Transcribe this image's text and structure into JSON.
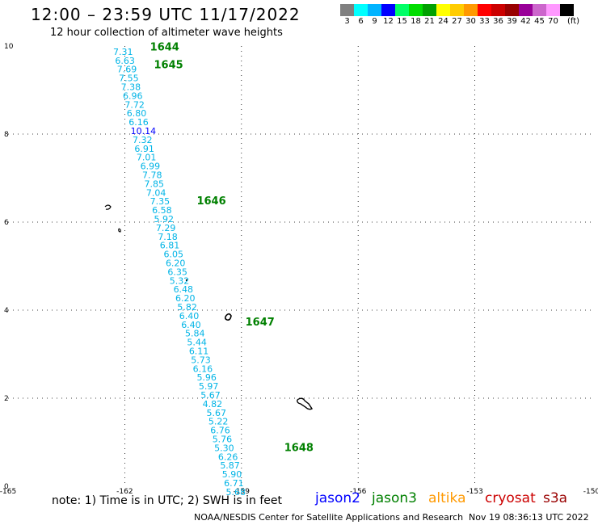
{
  "header": {
    "title": "12:00 – 23:59 UTC 11/17/2022",
    "subtitle": "12 hour collection of altimeter wave heights"
  },
  "legend": {
    "colors": [
      "#808080",
      "#00ffff",
      "#00b4ff",
      "#0000ff",
      "#00ff66",
      "#00dd00",
      "#00a000",
      "#ffff00",
      "#ffcc00",
      "#ff9900",
      "#ff0000",
      "#cc0000",
      "#990000",
      "#990099",
      "#cc66cc",
      "#ff99ff",
      "#000000"
    ],
    "labels": [
      "3",
      "6",
      "9",
      "12",
      "15",
      "18",
      "21",
      "24",
      "27",
      "30",
      "33",
      "36",
      "39",
      "42",
      "45",
      "70",
      "(ft)"
    ]
  },
  "footer": {
    "note": "note:  1) Time is in UTC;  2) SWH is in feet",
    "satellites": [
      {
        "name": "jason2",
        "color": "#0000ff"
      },
      {
        "name": "jason3",
        "color": "#008000"
      },
      {
        "name": "altika",
        "color": "#ff9900"
      },
      {
        "name": "cryosat",
        "color": "#cc0000"
      },
      {
        "name": "s3a",
        "color": "#990000"
      }
    ],
    "credit": "NOAA/NESDIS Center for Satellite Applications and Research",
    "timestamp": "Nov 19 08:36:13 UTC 2022"
  },
  "chart_data": {
    "type": "scatter",
    "xlim": [
      -165,
      -150
    ],
    "ylim": [
      0,
      10
    ],
    "xticks": [
      "-165",
      "-162",
      "-159",
      "-156",
      "-153",
      "-150"
    ],
    "yticks": [
      "0",
      "2",
      "4",
      "6",
      "8",
      "10"
    ],
    "grid": true,
    "satellite_track": "jason3",
    "swh_points": [
      {
        "x": -162.3,
        "y": 9.8,
        "v": "7.31"
      },
      {
        "x": -162.25,
        "y": 9.6,
        "v": "6.63"
      },
      {
        "x": -162.2,
        "y": 9.4,
        "v": "7.69"
      },
      {
        "x": -162.15,
        "y": 9.2,
        "v": "7.55"
      },
      {
        "x": -162.1,
        "y": 9.0,
        "v": "7.38"
      },
      {
        "x": -162.05,
        "y": 8.8,
        "v": "6.96"
      },
      {
        "x": -162.0,
        "y": 8.6,
        "v": "7.72"
      },
      {
        "x": -161.95,
        "y": 8.4,
        "v": "6.80"
      },
      {
        "x": -161.9,
        "y": 8.2,
        "v": "6.16"
      },
      {
        "x": -161.85,
        "y": 8.0,
        "v": "10.14",
        "color": "#0000ff"
      },
      {
        "x": -161.8,
        "y": 7.8,
        "v": "7.32"
      },
      {
        "x": -161.75,
        "y": 7.6,
        "v": "6.91"
      },
      {
        "x": -161.7,
        "y": 7.4,
        "v": "7.01"
      },
      {
        "x": -161.6,
        "y": 7.2,
        "v": "6.99"
      },
      {
        "x": -161.55,
        "y": 7.0,
        "v": "7.78"
      },
      {
        "x": -161.5,
        "y": 6.8,
        "v": "7.85"
      },
      {
        "x": -161.45,
        "y": 6.6,
        "v": "7.04"
      },
      {
        "x": -161.35,
        "y": 6.4,
        "v": "7.35"
      },
      {
        "x": -161.3,
        "y": 6.2,
        "v": "6.58"
      },
      {
        "x": -161.25,
        "y": 6.0,
        "v": "5.92"
      },
      {
        "x": -161.2,
        "y": 5.8,
        "v": "7.29"
      },
      {
        "x": -161.15,
        "y": 5.6,
        "v": "7.18"
      },
      {
        "x": -161.1,
        "y": 5.4,
        "v": "6.81"
      },
      {
        "x": -161.0,
        "y": 5.2,
        "v": "6.05"
      },
      {
        "x": -160.95,
        "y": 5.0,
        "v": "6.20"
      },
      {
        "x": -160.9,
        "y": 4.8,
        "v": "6.35"
      },
      {
        "x": -160.85,
        "y": 4.6,
        "v": "5.32"
      },
      {
        "x": -160.75,
        "y": 4.4,
        "v": "6.48"
      },
      {
        "x": -160.7,
        "y": 4.2,
        "v": "6.20"
      },
      {
        "x": -160.65,
        "y": 4.0,
        "v": "5.82"
      },
      {
        "x": -160.6,
        "y": 3.8,
        "v": "6.40"
      },
      {
        "x": -160.55,
        "y": 3.6,
        "v": "6.40"
      },
      {
        "x": -160.45,
        "y": 3.4,
        "v": "5.84"
      },
      {
        "x": -160.4,
        "y": 3.2,
        "v": "5.44"
      },
      {
        "x": -160.35,
        "y": 3.0,
        "v": "6.11"
      },
      {
        "x": -160.3,
        "y": 2.8,
        "v": "5.73"
      },
      {
        "x": -160.25,
        "y": 2.6,
        "v": "6.16"
      },
      {
        "x": -160.15,
        "y": 2.4,
        "v": "5.96"
      },
      {
        "x": -160.1,
        "y": 2.2,
        "v": "5.97"
      },
      {
        "x": -160.05,
        "y": 2.0,
        "v": "5.67"
      },
      {
        "x": -160.0,
        "y": 1.8,
        "v": "4.82"
      },
      {
        "x": -159.9,
        "y": 1.6,
        "v": "5.67"
      },
      {
        "x": -159.85,
        "y": 1.4,
        "v": "5.22"
      },
      {
        "x": -159.8,
        "y": 1.2,
        "v": "6.76"
      },
      {
        "x": -159.75,
        "y": 1.0,
        "v": "5.76"
      },
      {
        "x": -159.7,
        "y": 0.8,
        "v": "5.30"
      },
      {
        "x": -159.6,
        "y": 0.6,
        "v": "6.26"
      },
      {
        "x": -159.55,
        "y": 0.4,
        "v": "5.87"
      },
      {
        "x": -159.5,
        "y": 0.2,
        "v": "5.90"
      },
      {
        "x": -159.45,
        "y": 0.0,
        "v": "6.71"
      },
      {
        "x": -159.4,
        "y": -0.2,
        "v": "5.68"
      }
    ],
    "time_labels": [
      {
        "x": -161.35,
        "y": 9.9,
        "t": "1644"
      },
      {
        "x": -161.25,
        "y": 9.5,
        "t": "1645"
      },
      {
        "x": -160.15,
        "y": 6.4,
        "t": "1646"
      },
      {
        "x": -158.9,
        "y": 3.65,
        "t": "1647"
      },
      {
        "x": -157.9,
        "y": 0.8,
        "t": "1648"
      }
    ]
  }
}
